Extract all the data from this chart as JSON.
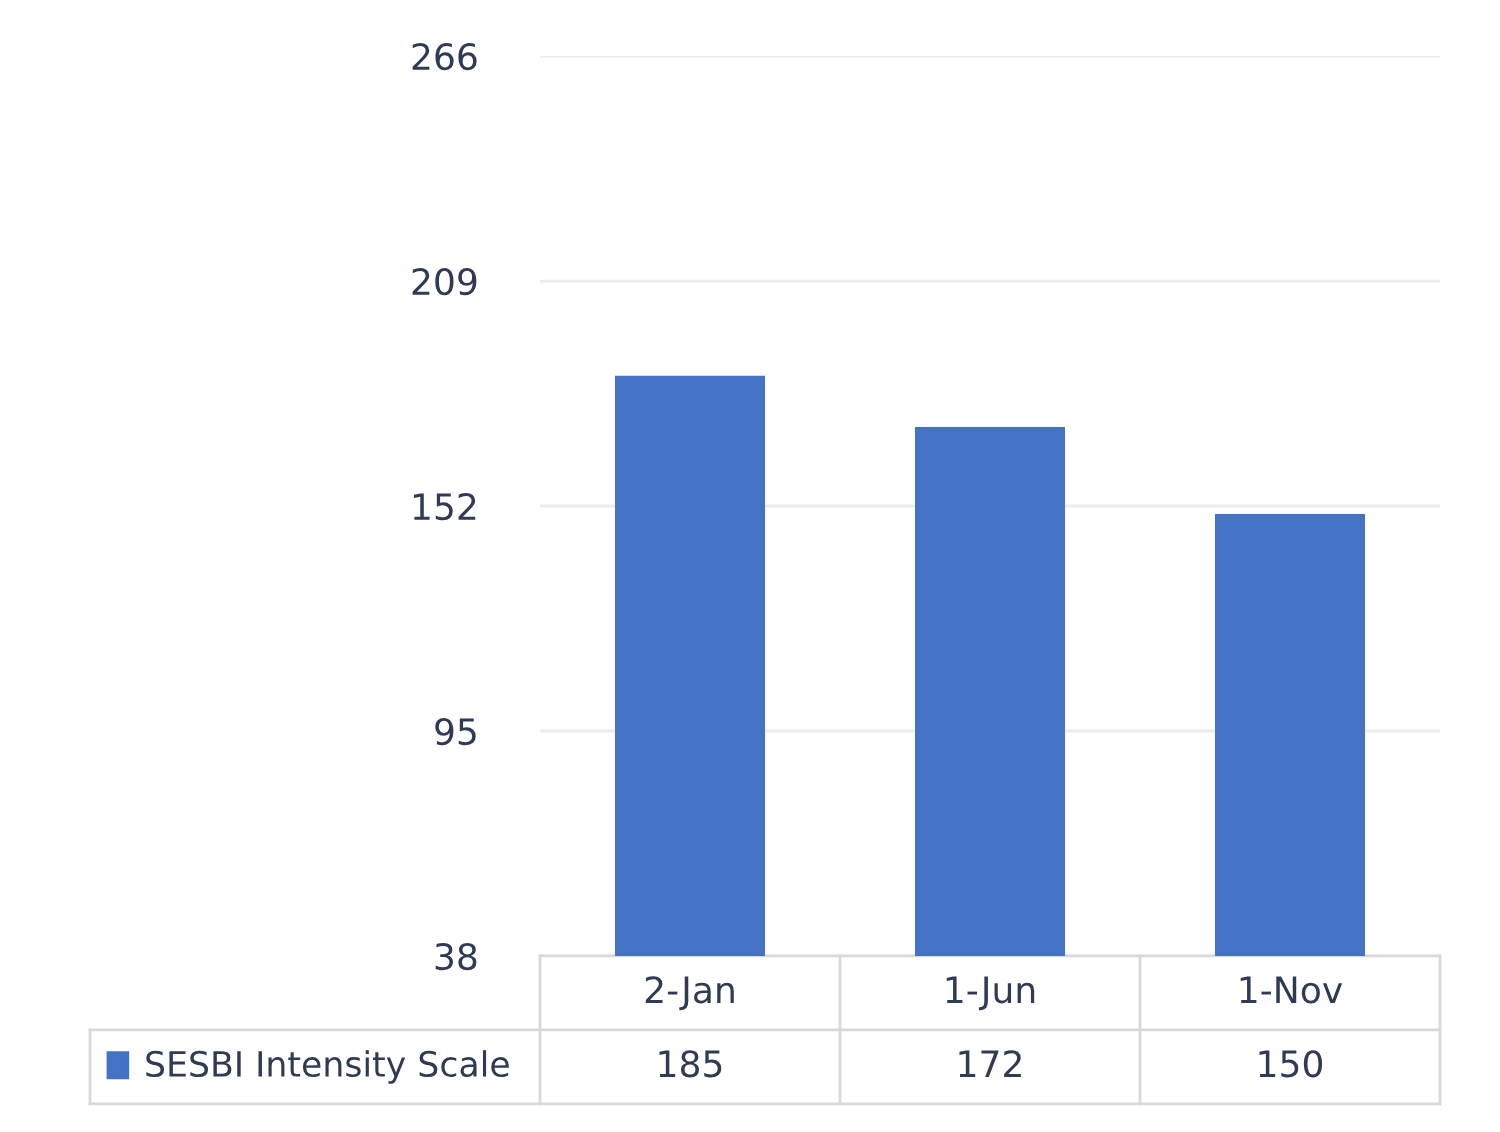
{
  "chart_data": {
    "type": "bar",
    "categories": [
      "2-Jan",
      "1-Jun",
      "1-Nov"
    ],
    "series": [
      {
        "name": "SESBI Intensity Scale",
        "color": "#4472c4",
        "values": [
          185,
          172,
          150
        ]
      }
    ],
    "ylim": [
      38,
      266
    ],
    "yticks": [
      38,
      95,
      152,
      209,
      266
    ],
    "grid": "y",
    "legend": "bottom",
    "data_labels": true
  }
}
